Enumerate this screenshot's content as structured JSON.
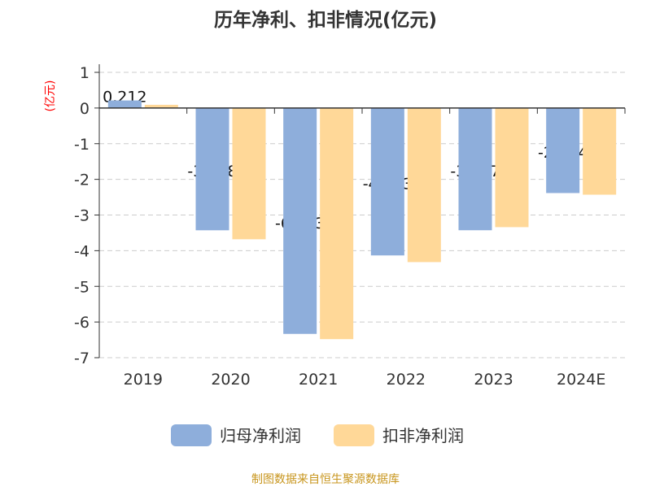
{
  "chart_data": {
    "type": "bar",
    "title": "历年净利、扣非情况(亿元)",
    "ylabel": "(亿元)",
    "categories": [
      "2019",
      "2020",
      "2021",
      "2022",
      "2023",
      "2024E"
    ],
    "series": [
      {
        "name": "归母净利润",
        "color": "#8eaedb",
        "values": [
          0.212,
          -3.428,
          -6.333,
          -4.133,
          -3.427,
          -2.384
        ],
        "labels": [
          "0.212",
          "-3.428",
          "-6.333",
          "-4.133",
          "-3.427",
          "-2.384"
        ]
      },
      {
        "name": "扣非净利润",
        "color": "#ffd898",
        "values": [
          0.09,
          -3.68,
          -6.48,
          -4.32,
          -3.34,
          -2.43
        ]
      }
    ],
    "ylim": [
      -7,
      1
    ],
    "yticks": [
      1,
      0,
      -1,
      -2,
      -3,
      -4,
      -5,
      -6,
      -7
    ],
    "grid": true,
    "legend": "bottom"
  },
  "source": "制图数据来自恒生聚源数据库",
  "colors": {
    "title": "#333333",
    "ylabel": "#ff0000",
    "source": "#c8961e"
  }
}
